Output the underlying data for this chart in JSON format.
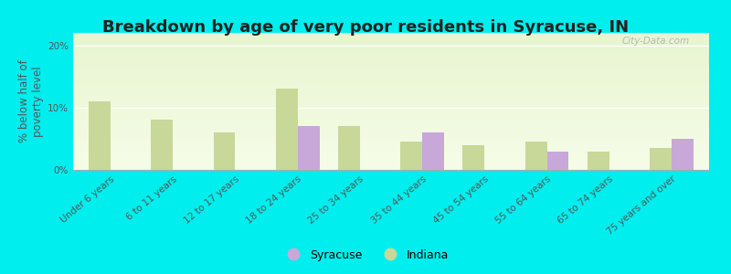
{
  "title": "Breakdown by age of very poor residents in Syracuse, IN",
  "ylabel": "% below half of\npoverty level",
  "categories": [
    "Under 6 years",
    "6 to 11 years",
    "12 to 17 years",
    "18 to 24 years",
    "25 to 34 years",
    "35 to 44 years",
    "45 to 54 years",
    "55 to 64 years",
    "65 to 74 years",
    "75 years and over"
  ],
  "syracuse": [
    0,
    0,
    0,
    7.0,
    0,
    6.0,
    0,
    3.0,
    0,
    5.0
  ],
  "indiana": [
    11.0,
    8.0,
    6.0,
    13.0,
    7.0,
    4.5,
    4.0,
    4.5,
    3.0,
    3.5
  ],
  "syracuse_color": "#c8a8d8",
  "indiana_color": "#c8d898",
  "background_color": "#00eeee",
  "grad_top": "#e8f5d0",
  "grad_bottom": "#f5fde8",
  "ylim": [
    0,
    22
  ],
  "yticks": [
    0,
    10,
    20
  ],
  "ytick_labels": [
    "0%",
    "10%",
    "20%"
  ],
  "bar_width": 0.35,
  "title_fontsize": 13,
  "axis_label_fontsize": 8.5,
  "tick_fontsize": 7.5,
  "legend_fontsize": 9,
  "watermark": "City-Data.com"
}
